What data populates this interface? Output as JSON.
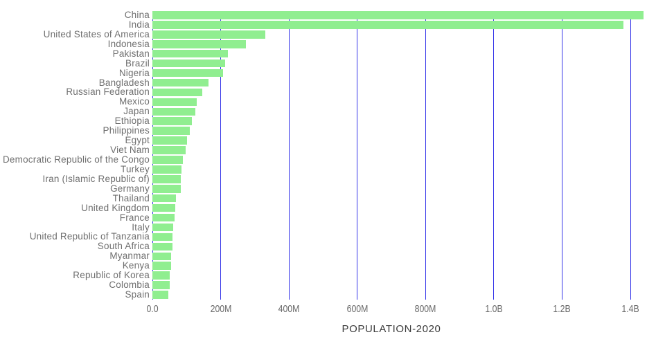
{
  "chart_data": {
    "type": "bar",
    "orientation": "horizontal",
    "title": "POPULATION-2020",
    "xlabel": "POPULATION-2020",
    "ylabel": "",
    "unit": "millions",
    "grid": true,
    "xlim_millions": [
      0,
      1450
    ],
    "x_ticks": [
      {
        "label": "0.0",
        "value": 0
      },
      {
        "label": "200M",
        "value": 200
      },
      {
        "label": "400M",
        "value": 400
      },
      {
        "label": "600M",
        "value": 600
      },
      {
        "label": "800M",
        "value": 800
      },
      {
        "label": "1.0B",
        "value": 1000
      },
      {
        "label": "1.2B",
        "value": 1200
      },
      {
        "label": "1.4B",
        "value": 1400
      }
    ],
    "categories": [
      "China",
      "India",
      "United States of America",
      "Indonesia",
      "Pakistan",
      "Brazil",
      "Nigeria",
      "Bangladesh",
      "Russian Federation",
      "Mexico",
      "Japan",
      "Ethiopia",
      "Philippines",
      "Egypt",
      "Viet Nam",
      "Democratic Republic of the Congo",
      "Turkey",
      "Iran (Islamic Republic of)",
      "Germany",
      "Thailand",
      "United Kingdom",
      "France",
      "Italy",
      "United Republic of Tanzania",
      "South Africa",
      "Myanmar",
      "Kenya",
      "Republic of Korea",
      "Colombia",
      "Spain"
    ],
    "values_millions": [
      1439.3,
      1380.0,
      331.0,
      273.5,
      220.9,
      212.6,
      206.1,
      164.7,
      145.9,
      128.9,
      126.5,
      115.0,
      109.6,
      102.3,
      97.3,
      89.6,
      84.3,
      84.0,
      83.8,
      69.8,
      67.9,
      65.3,
      60.5,
      59.7,
      59.3,
      54.4,
      53.8,
      51.3,
      50.9,
      46.8
    ],
    "colors": {
      "bar": "#90ee90",
      "gridline": "#3232e8",
      "y_label": "#6f6f6f",
      "tick_label": "#696969",
      "title": "#3a3a3a",
      "background": "#ffffff"
    },
    "legend": null
  }
}
